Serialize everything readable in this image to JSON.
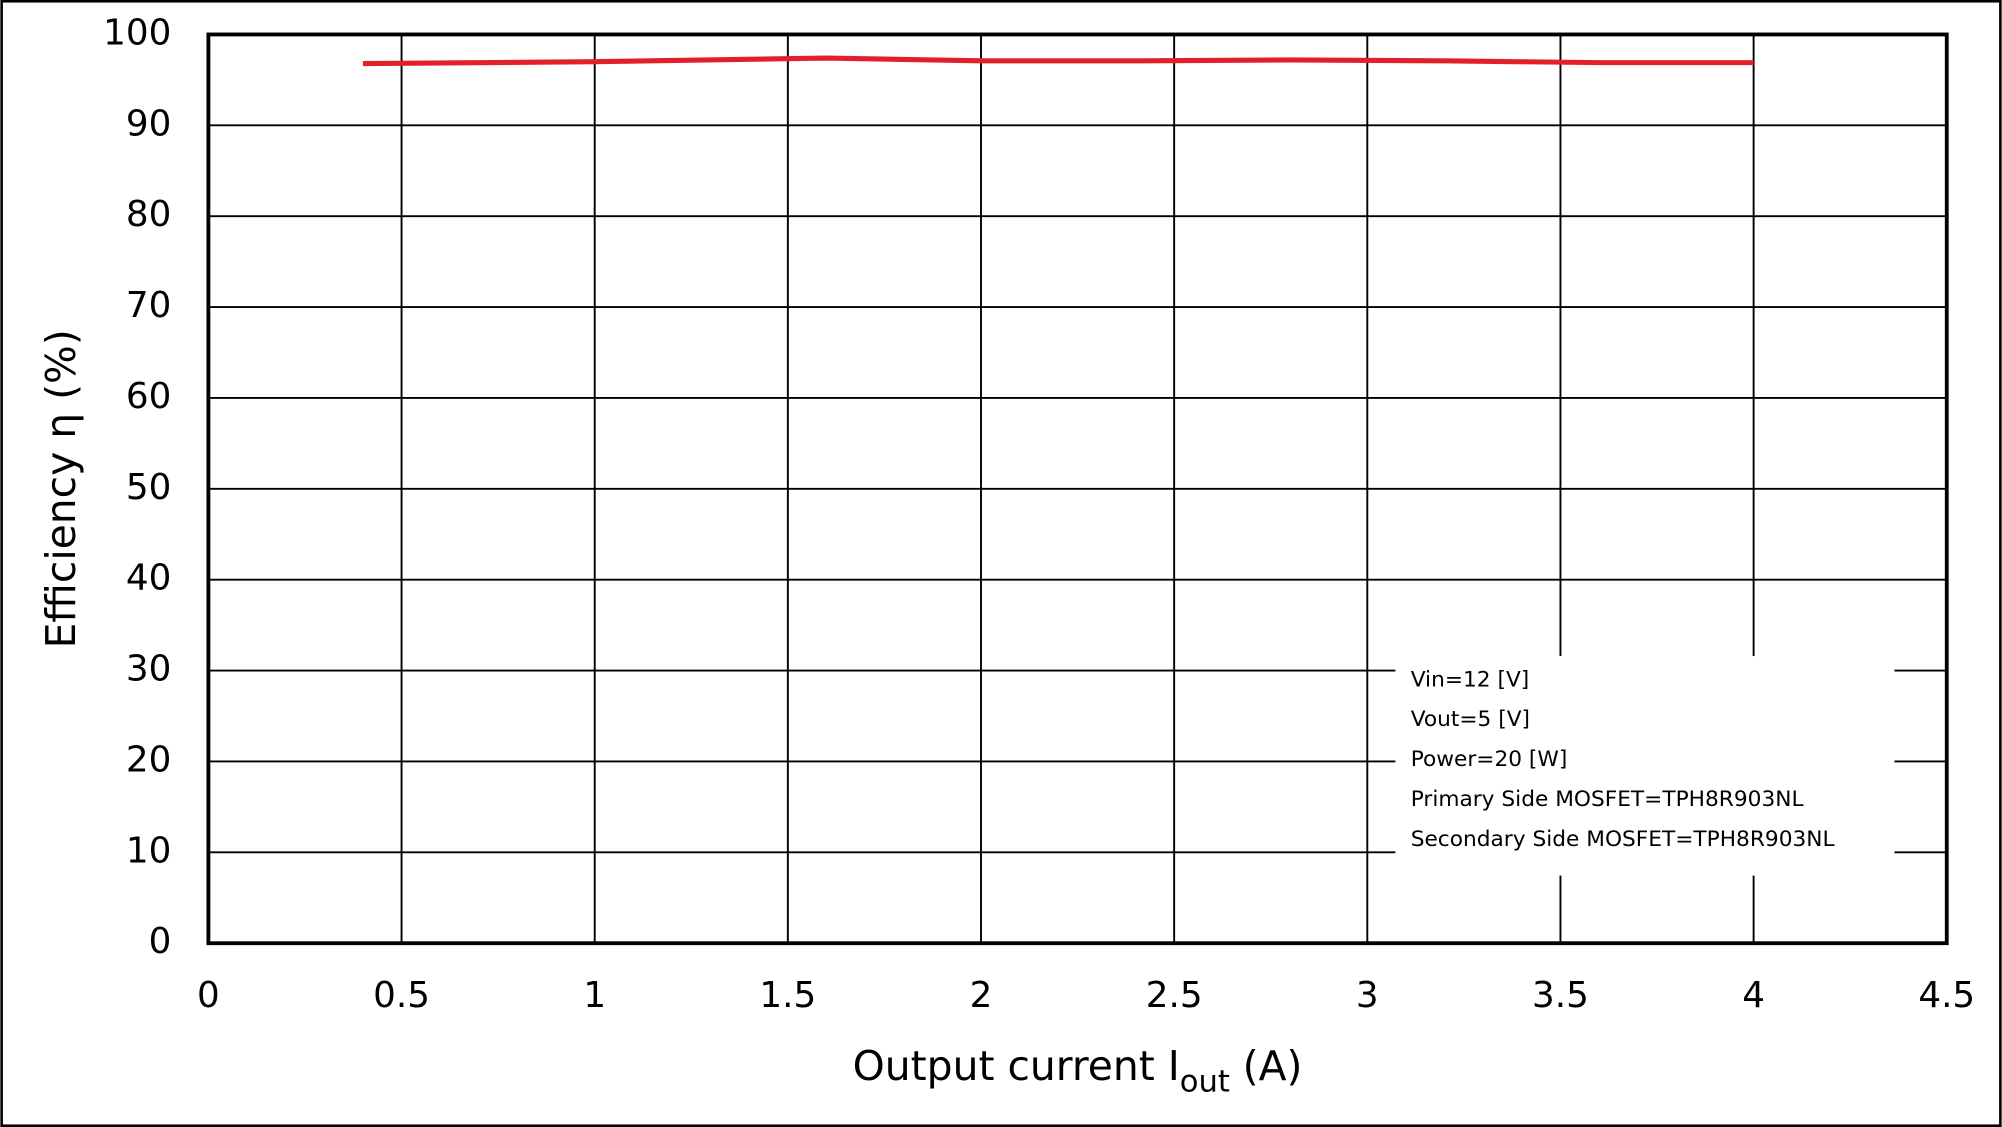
{
  "chart_data": {
    "type": "line",
    "xlabel": {
      "main": "Output current  I",
      "sub": "out",
      "unit": "(A)"
    },
    "ylabel": "Efficiency  η (%)",
    "x": [
      0.4,
      1.0,
      1.6,
      2.0,
      2.4,
      2.8,
      3.2,
      3.6,
      4.0
    ],
    "series": [
      {
        "color": "#e3202a",
        "values": [
          96.8,
          97.0,
          97.4,
          97.1,
          97.1,
          97.2,
          97.1,
          96.9,
          96.9
        ]
      }
    ],
    "xlim": [
      0,
      4.5
    ],
    "xticks": [
      0,
      0.5,
      1,
      1.5,
      2,
      2.5,
      3,
      3.5,
      4,
      4.5
    ],
    "ylim": [
      0,
      100
    ],
    "yticks": [
      0,
      10,
      20,
      30,
      40,
      50,
      60,
      70,
      80,
      90,
      100
    ],
    "grid": true,
    "annotations": [
      "Vin=12 [V]",
      "Vout=5 [V]",
      "Power=20 [W]",
      "Primary Side MOSFET=TPH8R903NL",
      "Secondary Side MOSFET=TPH8R903NL"
    ]
  }
}
